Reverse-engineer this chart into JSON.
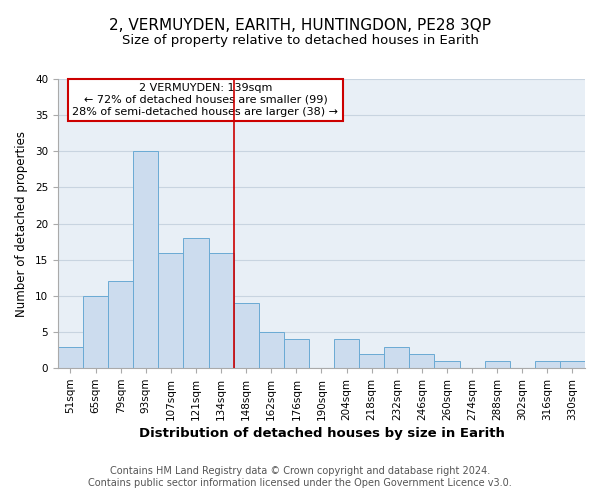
{
  "title": "2, VERMUYDEN, EARITH, HUNTINGDON, PE28 3QP",
  "subtitle": "Size of property relative to detached houses in Earith",
  "xlabel": "Distribution of detached houses by size in Earith",
  "ylabel": "Number of detached properties",
  "bin_labels": [
    "51sqm",
    "65sqm",
    "79sqm",
    "93sqm",
    "107sqm",
    "121sqm",
    "134sqm",
    "148sqm",
    "162sqm",
    "176sqm",
    "190sqm",
    "204sqm",
    "218sqm",
    "232sqm",
    "246sqm",
    "260sqm",
    "274sqm",
    "288sqm",
    "302sqm",
    "316sqm",
    "330sqm"
  ],
  "bin_counts": [
    3,
    10,
    12,
    30,
    16,
    18,
    16,
    9,
    5,
    4,
    0,
    4,
    2,
    3,
    2,
    1,
    0,
    1,
    0,
    1,
    1
  ],
  "bar_color": "#ccdcee",
  "bar_edge_color": "#6aaad4",
  "grid_color": "#c8d4e0",
  "vline_x_index": 6.5,
  "vline_color": "#cc0000",
  "annotation_title": "2 VERMUYDEN: 139sqm",
  "annotation_line1": "← 72% of detached houses are smaller (99)",
  "annotation_line2": "28% of semi-detached houses are larger (38) →",
  "annotation_box_color": "white",
  "annotation_box_edge_color": "#cc0000",
  "ylim": [
    0,
    40
  ],
  "yticks": [
    0,
    5,
    10,
    15,
    20,
    25,
    30,
    35,
    40
  ],
  "footer_line1": "Contains HM Land Registry data © Crown copyright and database right 2024.",
  "footer_line2": "Contains public sector information licensed under the Open Government Licence v3.0.",
  "plot_bg_color": "#e8eff6",
  "fig_bg_color": "#ffffff",
  "title_fontsize": 11,
  "subtitle_fontsize": 9.5,
  "xlabel_fontsize": 9.5,
  "ylabel_fontsize": 8.5,
  "footer_fontsize": 7,
  "tick_fontsize": 7.5,
  "ann_fontsize": 8
}
